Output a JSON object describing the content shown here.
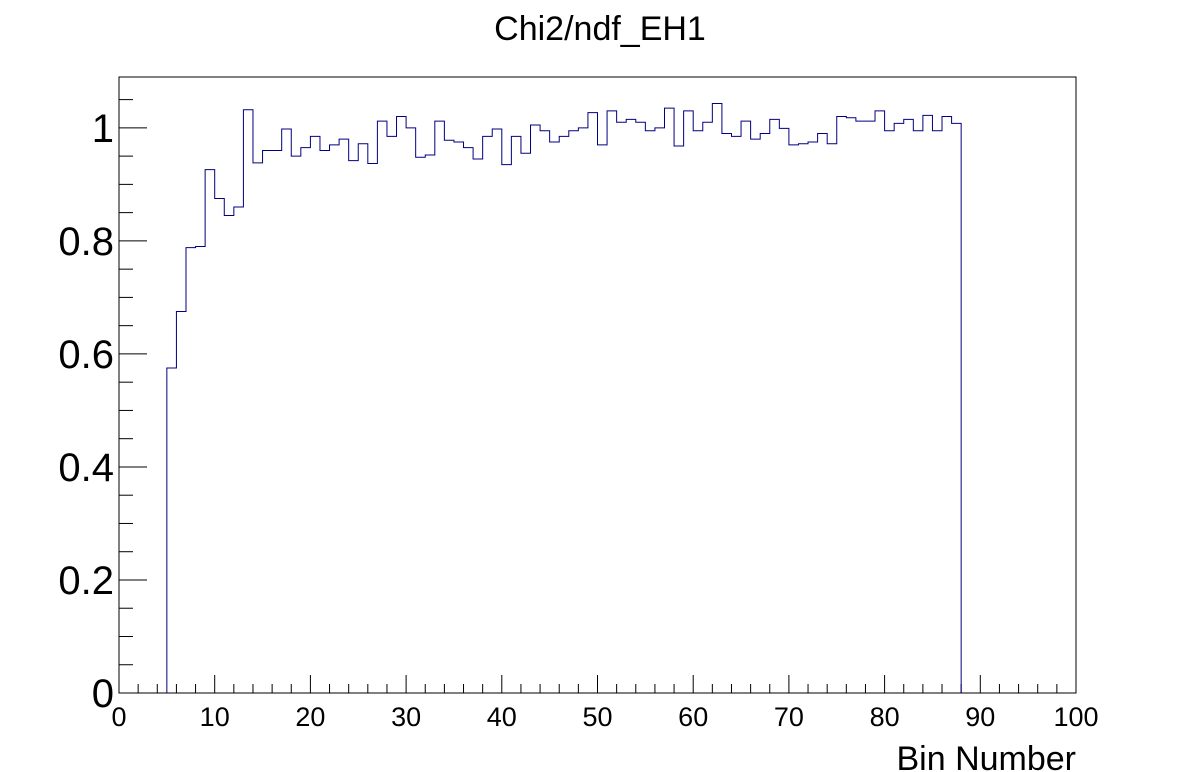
{
  "chart_data": {
    "type": "histogram",
    "title": "Chi2/ndf_EH1",
    "xlabel": "Bin Number",
    "ylabel": "",
    "xlim": [
      0,
      100
    ],
    "ylim": [
      0,
      1.09
    ],
    "x_ticks": [
      "0",
      "10",
      "20",
      "30",
      "40",
      "50",
      "60",
      "70",
      "80",
      "90",
      "100"
    ],
    "y_ticks": [
      "0",
      "0.2",
      "0.4",
      "0.6",
      "0.8",
      "1"
    ],
    "grid": false,
    "legend": "none",
    "line_color": "#000080",
    "bin_width": 1,
    "first_bin_low_edge": 5,
    "values": [
      0.575,
      0.675,
      0.788,
      0.79,
      0.926,
      0.875,
      0.845,
      0.86,
      1.032,
      0.938,
      0.96,
      0.96,
      0.998,
      0.95,
      0.965,
      0.985,
      0.96,
      0.97,
      0.98,
      0.942,
      0.972,
      0.937,
      1.012,
      0.985,
      1.02,
      1.0,
      0.948,
      0.952,
      1.012,
      0.978,
      0.975,
      0.965,
      0.945,
      0.985,
      0.998,
      0.935,
      0.985,
      0.955,
      1.005,
      0.995,
      0.975,
      0.985,
      0.995,
      1.0,
      1.027,
      0.97,
      1.03,
      1.01,
      1.015,
      1.01,
      0.995,
      1.0,
      1.035,
      0.968,
      1.03,
      0.995,
      1.01,
      1.043,
      0.99,
      0.985,
      1.012,
      0.98,
      0.99,
      1.015,
      0.999,
      0.97,
      0.972,
      0.975,
      0.99,
      0.972,
      1.02,
      1.018,
      1.012,
      1.012,
      1.03,
      0.995,
      1.008,
      1.015,
      0.995,
      1.022,
      0.995,
      1.02,
      1.008
    ]
  }
}
